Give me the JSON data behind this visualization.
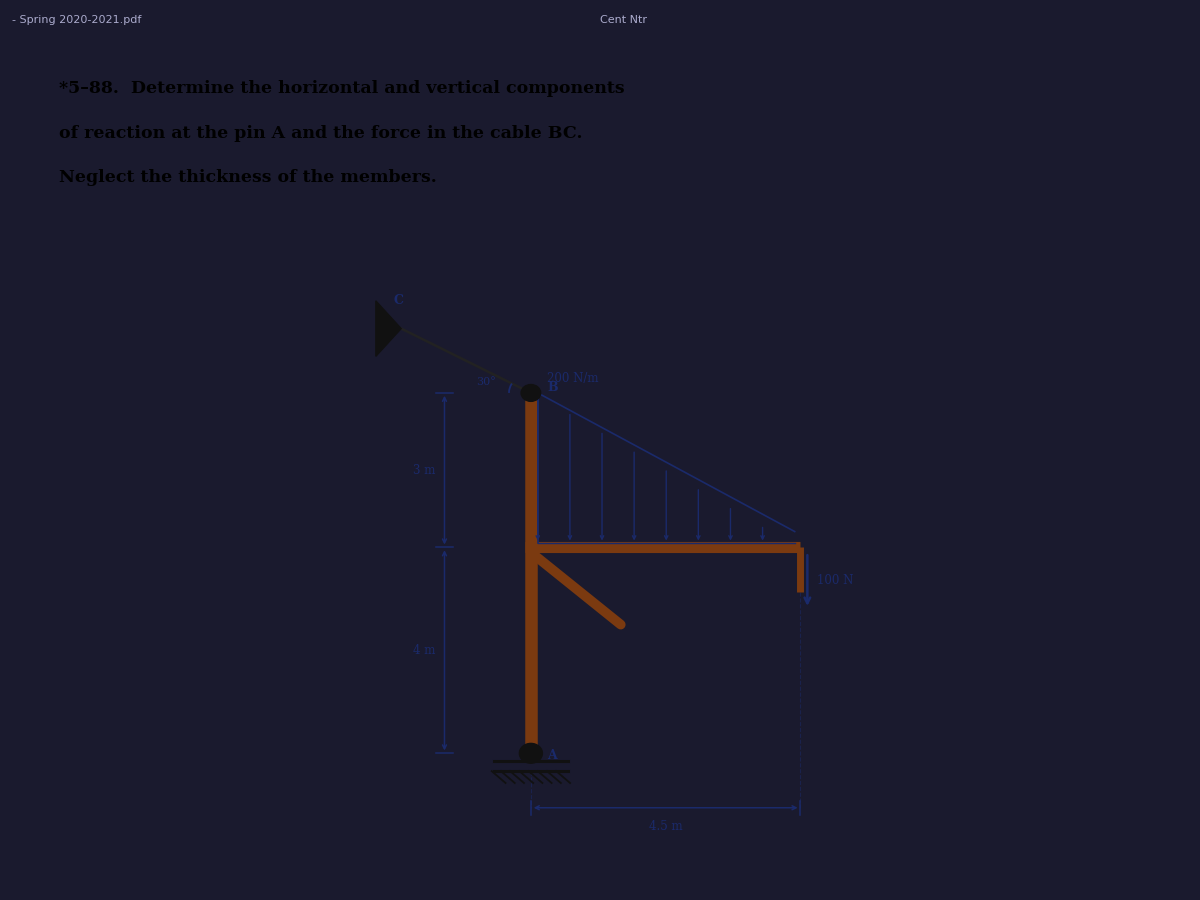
{
  "bg_outer": "#1a1a2e",
  "bg_header": "#111122",
  "bg_content": "#c0bfbb",
  "header_text_left": "- Spring 2020-2021.pdf",
  "header_text_right": "Cent Ntr",
  "title_line1": "*5–88.  Determine the horizontal and vertical components",
  "title_line2": "of reaction at the pin A and the force in the cable BC.",
  "title_line3": "Neglect the thickness of the members.",
  "struct_color": "#7B3A10",
  "dim_color": "#1a2a6b",
  "load_color": "#1a2a6b",
  "text_color": "#1a1a1a",
  "pin_color": "#111111",
  "wall_color": "#111111",
  "angle_label": "30°",
  "dist_load_label": "200 N/m",
  "dim_3m": "3 m",
  "dim_4m": "4 m",
  "dim_45m": "4.5 m",
  "force_100N": "100 N",
  "label_A": "A",
  "label_B": "B",
  "label_C": "C"
}
